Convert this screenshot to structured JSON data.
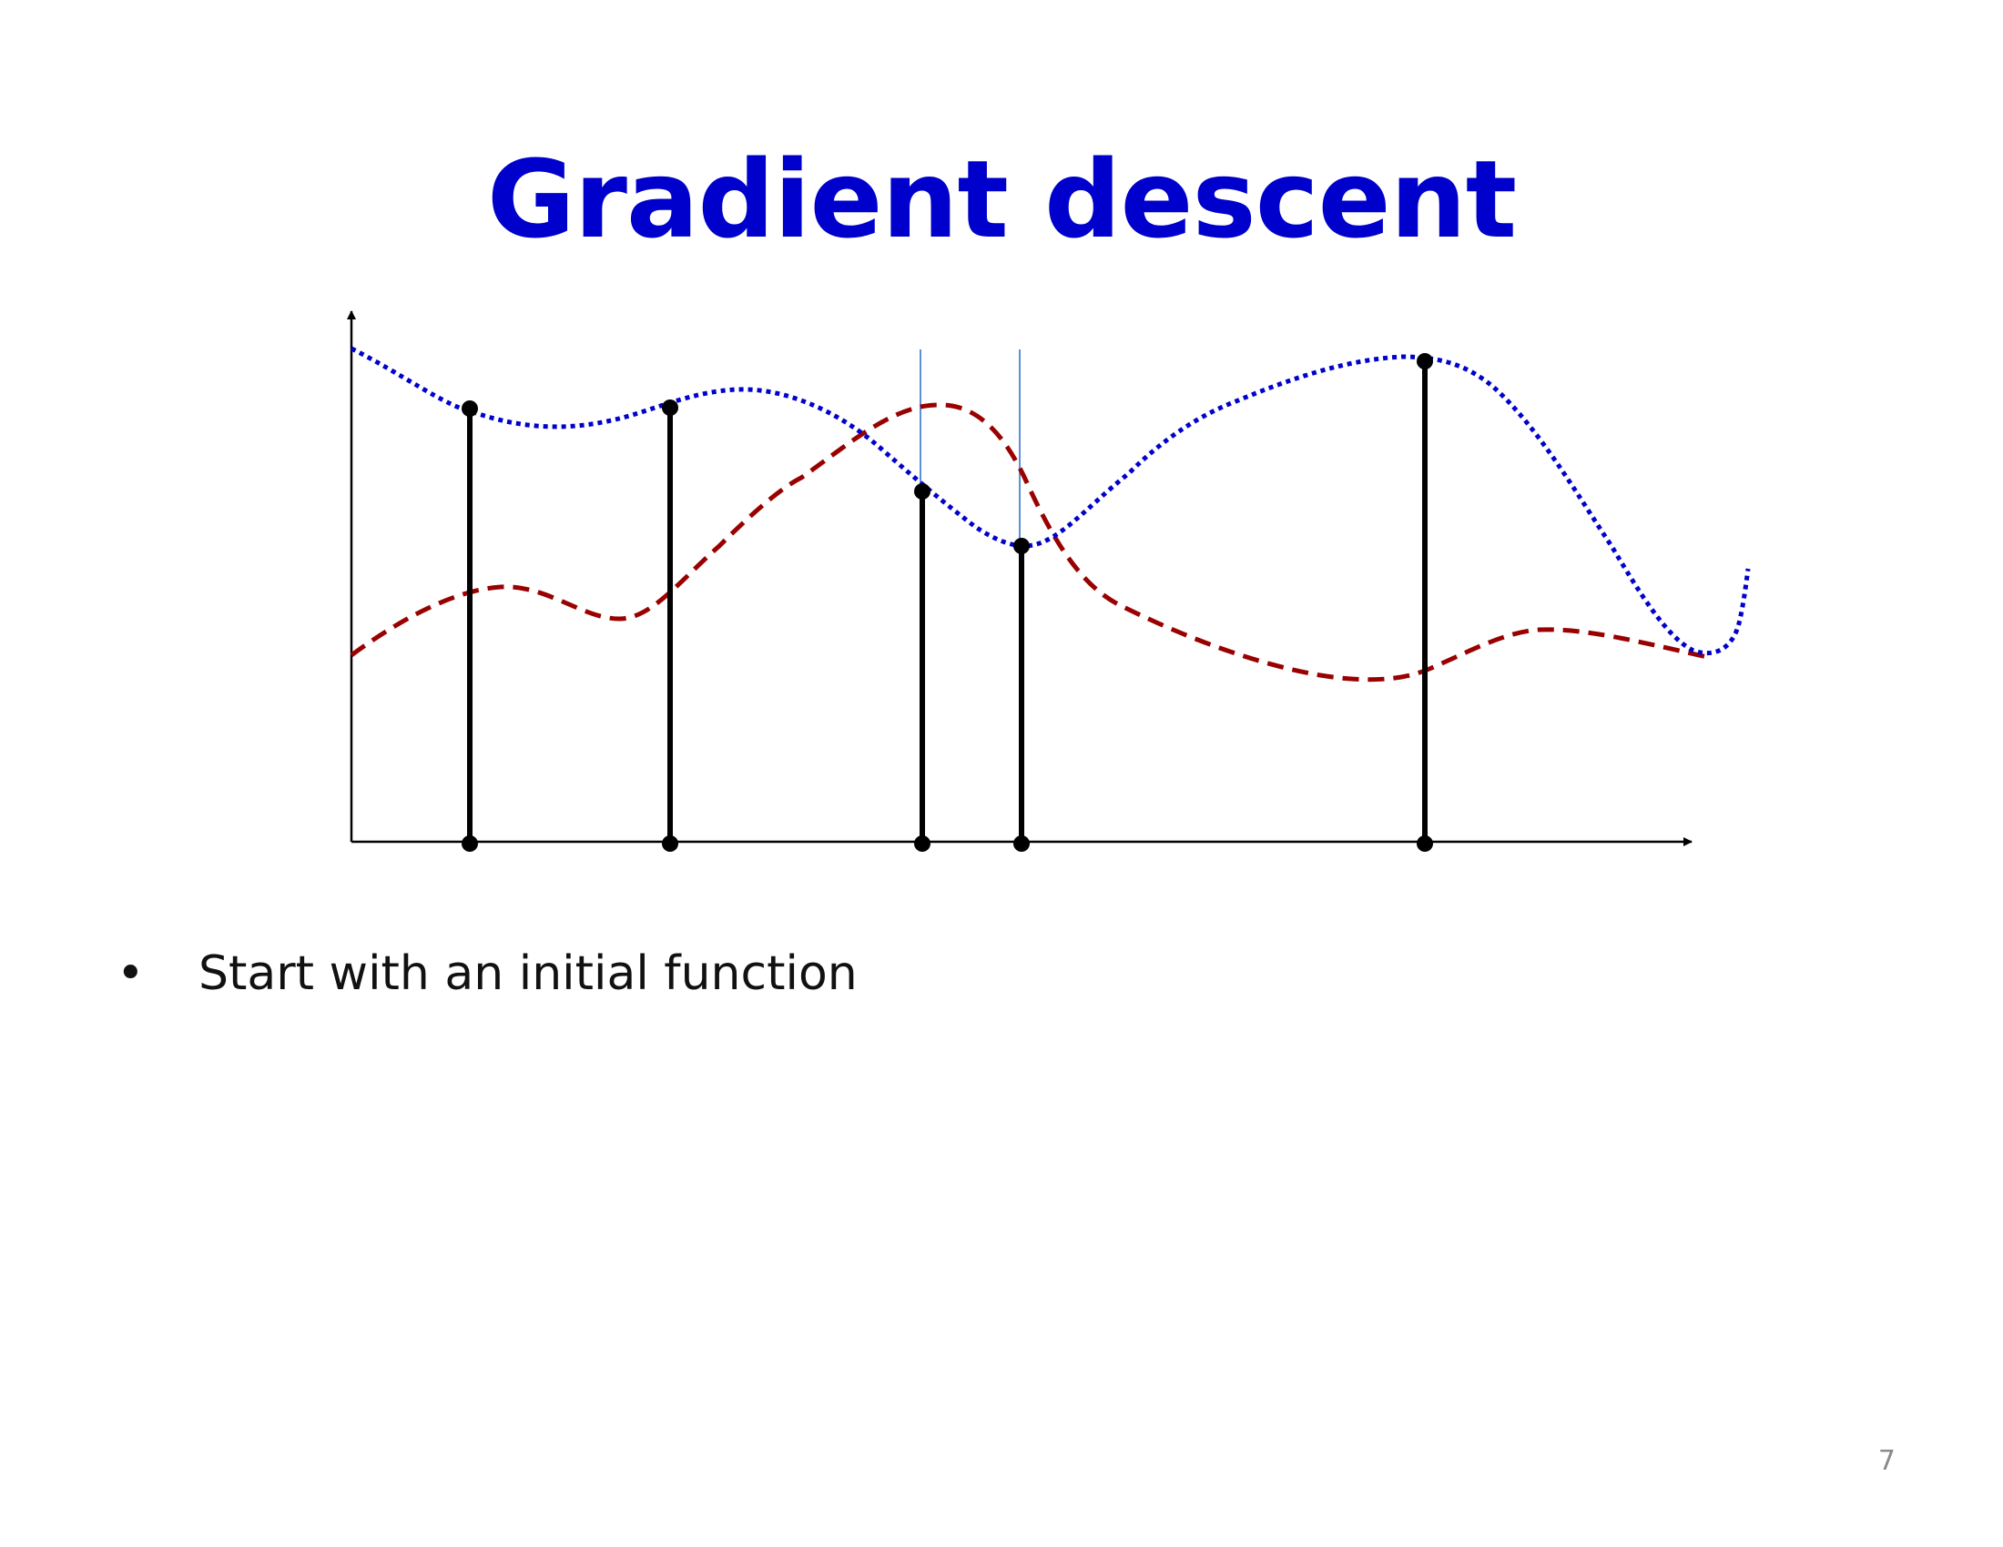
{
  "slide": {
    "title": "Gradient descent",
    "title_color": "#0000cc",
    "bullet_symbol": "•",
    "bullet_text": "Start with an initial function",
    "page_number": "7"
  },
  "diagram": {
    "colors": {
      "axis": "#000000",
      "target_curve": "#0000cc",
      "model_curve": "#990000",
      "sample_stem": "#000000",
      "guide_line": "#5b8fd6"
    },
    "target_curve_style": "dotted",
    "model_curve_style": "dashed",
    "sample_count": 5
  }
}
